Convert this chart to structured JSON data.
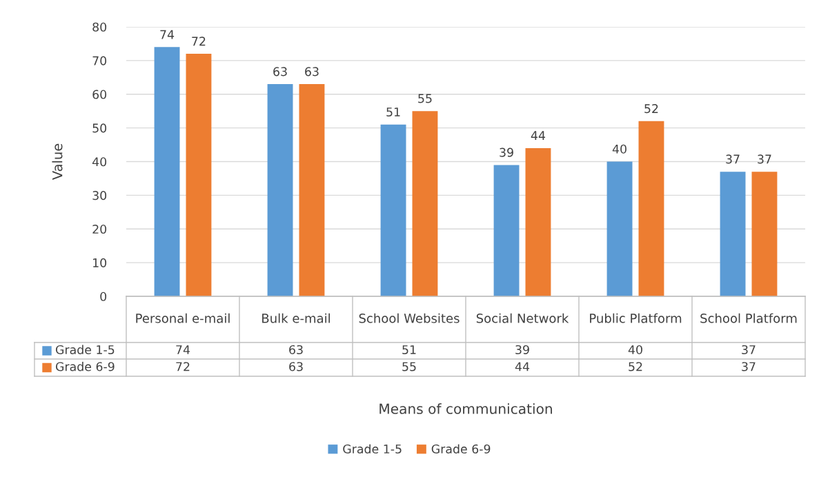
{
  "chart_data": {
    "type": "bar",
    "ylabel": "Value",
    "annotations": [
      "Means of communication",
      "74",
      "63",
      "51",
      "39",
      "40",
      "37",
      "72",
      "63",
      "55",
      "44",
      "52",
      "37"
    ],
    "categories": [
      "Personal e-mail",
      "Bulk e-mail",
      "School Websites",
      "Social Network",
      "Public Platform",
      "School Platform"
    ],
    "series": [
      {
        "name": "Grade 1-5",
        "color": "#5b9bd5",
        "values": [
          74,
          63,
          51,
          39,
          40,
          37
        ]
      },
      {
        "name": "Grade 6-9",
        "color": "#ed7d31",
        "values": [
          72,
          63,
          55,
          44,
          52,
          37
        ]
      }
    ],
    "ylim": [
      0,
      80
    ],
    "yticks": [
      0,
      10,
      20,
      30,
      40,
      50,
      60,
      70,
      80
    ],
    "grid": "y",
    "legend": "bottom",
    "data_labels": true
  }
}
